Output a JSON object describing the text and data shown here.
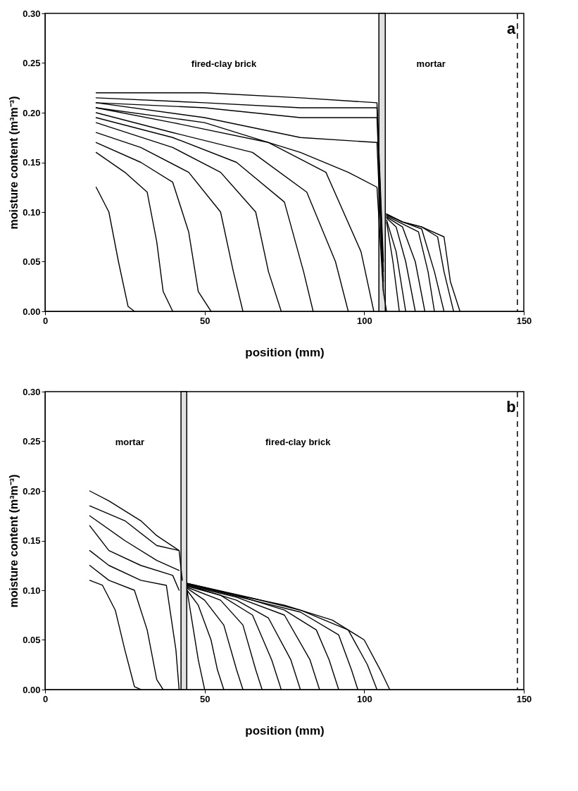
{
  "chart_data": [
    {
      "type": "line",
      "xlabel": "position (mm)",
      "ylabel": "moisture content (m³m⁻³)",
      "xlim": [
        0,
        150
      ],
      "ylim": [
        0,
        0.3
      ],
      "xticks": [
        0,
        50,
        100,
        150
      ],
      "yticks": [
        {
          "value": 0,
          "label": "0.00"
        },
        {
          "value": 0.05,
          "label": "0.05"
        },
        {
          "value": 0.1,
          "label": "0.10"
        },
        {
          "value": 0.15,
          "label": "0.15"
        },
        {
          "value": 0.2,
          "label": "0.20"
        },
        {
          "value": 0.25,
          "label": "0.25"
        },
        {
          "value": 0.3,
          "label": "0.30"
        }
      ],
      "grid": false,
      "legend": false,
      "marker": "none",
      "line_style": "solid",
      "bands": [
        {
          "axis": "x",
          "from": 104.6,
          "to": 106.6,
          "color": "#e0e0e0"
        }
      ],
      "ref_lines": [
        {
          "axis": "x",
          "value": 148,
          "line_style": "dashed"
        }
      ],
      "annotations": [
        "fired-clay brick",
        "mortar",
        "a"
      ],
      "series": [
        {
          "color": "#000000",
          "x": [
            16,
            20,
            23,
            26,
            28
          ],
          "values": [
            0.125,
            0.1,
            0.05,
            0.005,
            0
          ]
        },
        {
          "color": "#000000",
          "x": [
            16,
            25,
            32,
            35,
            37,
            40
          ],
          "values": [
            0.16,
            0.14,
            0.12,
            0.07,
            0.02,
            0
          ]
        },
        {
          "color": "#000000",
          "x": [
            16,
            30,
            40,
            45,
            48,
            52
          ],
          "values": [
            0.17,
            0.15,
            0.13,
            0.08,
            0.02,
            0
          ]
        },
        {
          "color": "#000000",
          "x": [
            16,
            30,
            45,
            55,
            59,
            62
          ],
          "values": [
            0.18,
            0.165,
            0.14,
            0.1,
            0.04,
            0
          ]
        },
        {
          "color": "#000000",
          "x": [
            16,
            40,
            55,
            66,
            70,
            74
          ],
          "values": [
            0.19,
            0.165,
            0.14,
            0.1,
            0.04,
            0
          ]
        },
        {
          "color": "#000000",
          "x": [
            16,
            40,
            60,
            75,
            81,
            84
          ],
          "values": [
            0.195,
            0.175,
            0.15,
            0.11,
            0.04,
            0
          ]
        },
        {
          "color": "#000000",
          "x": [
            16,
            40,
            65,
            82,
            91,
            95
          ],
          "values": [
            0.2,
            0.18,
            0.16,
            0.12,
            0.05,
            0
          ]
        },
        {
          "color": "#000000",
          "x": [
            16,
            40,
            70,
            88,
            99,
            103
          ],
          "values": [
            0.205,
            0.19,
            0.17,
            0.14,
            0.06,
            0
          ]
        },
        {
          "color": "#000000",
          "x": [
            16,
            50,
            80,
            95,
            104,
            106,
            107
          ],
          "values": [
            0.205,
            0.19,
            0.16,
            0.14,
            0.125,
            0.02,
            0
          ]
        },
        {
          "color": "#000000",
          "x": [
            16,
            50,
            80,
            104,
            106
          ],
          "values": [
            0.21,
            0.195,
            0.175,
            0.17,
            0.02
          ]
        },
        {
          "color": "#000000",
          "x": [
            16,
            50,
            80,
            104,
            106
          ],
          "values": [
            0.21,
            0.205,
            0.195,
            0.195,
            0.03
          ]
        },
        {
          "color": "#000000",
          "x": [
            16,
            50,
            80,
            104,
            106
          ],
          "values": [
            0.215,
            0.21,
            0.205,
            0.205,
            0.04
          ]
        },
        {
          "color": "#000000",
          "x": [
            16,
            30,
            50,
            80,
            104,
            106
          ],
          "values": [
            0.22,
            0.22,
            0.22,
            0.215,
            0.21,
            0.05
          ]
        },
        {
          "color": "#000000",
          "x": [
            107,
            109,
            111
          ],
          "values": [
            0.09,
            0.05,
            0
          ]
        },
        {
          "color": "#000000",
          "x": [
            107,
            110,
            113
          ],
          "values": [
            0.092,
            0.06,
            0
          ]
        },
        {
          "color": "#000000",
          "x": [
            107,
            110,
            113,
            116
          ],
          "values": [
            0.094,
            0.085,
            0.05,
            0
          ]
        },
        {
          "color": "#000000",
          "x": [
            107,
            112,
            116,
            119
          ],
          "values": [
            0.095,
            0.085,
            0.05,
            0
          ]
        },
        {
          "color": "#000000",
          "x": [
            107,
            112,
            117,
            120,
            122
          ],
          "values": [
            0.096,
            0.088,
            0.08,
            0.04,
            0
          ]
        },
        {
          "color": "#000000",
          "x": [
            107,
            112,
            118,
            122,
            125
          ],
          "values": [
            0.097,
            0.09,
            0.083,
            0.04,
            0
          ]
        },
        {
          "color": "#000000",
          "x": [
            107,
            112,
            118,
            123,
            125,
            128
          ],
          "values": [
            0.098,
            0.09,
            0.085,
            0.075,
            0.04,
            0
          ]
        },
        {
          "color": "#000000",
          "x": [
            107,
            112,
            118,
            125,
            127,
            130
          ],
          "values": [
            0.098,
            0.09,
            0.085,
            0.075,
            0.03,
            0
          ]
        }
      ]
    },
    {
      "type": "line",
      "xlabel": "position (mm)",
      "ylabel": "moisture content (m³m⁻³)",
      "xlim": [
        0,
        150
      ],
      "ylim": [
        0,
        0.3
      ],
      "xticks": [
        0,
        50,
        100,
        150
      ],
      "yticks": [
        {
          "value": 0,
          "label": "0.00"
        },
        {
          "value": 0.05,
          "label": "0.05"
        },
        {
          "value": 0.1,
          "label": "0.10"
        },
        {
          "value": 0.15,
          "label": "0.15"
        },
        {
          "value": 0.2,
          "label": "0.20"
        },
        {
          "value": 0.25,
          "label": "0.25"
        },
        {
          "value": 0.3,
          "label": "0.30"
        }
      ],
      "grid": false,
      "legend": false,
      "marker": "none",
      "line_style": "solid",
      "bands": [
        {
          "axis": "x",
          "from": 42.6,
          "to": 44.4,
          "color": "#e0e0e0"
        }
      ],
      "ref_lines": [
        {
          "axis": "x",
          "value": 148,
          "line_style": "dashed"
        }
      ],
      "annotations": [
        "mortar",
        "fired-clay brick",
        "b"
      ],
      "series": [
        {
          "color": "#000000",
          "x": [
            14,
            18,
            22,
            25,
            28,
            30
          ],
          "values": [
            0.11,
            0.105,
            0.08,
            0.04,
            0.003,
            0
          ]
        },
        {
          "color": "#000000",
          "x": [
            14,
            20,
            28,
            32,
            35,
            37
          ],
          "values": [
            0.125,
            0.11,
            0.1,
            0.06,
            0.01,
            0
          ]
        },
        {
          "color": "#000000",
          "x": [
            14,
            20,
            30,
            38,
            41,
            42
          ],
          "values": [
            0.14,
            0.125,
            0.11,
            0.105,
            0.04,
            0
          ]
        },
        {
          "color": "#000000",
          "x": [
            14,
            20,
            30,
            40,
            42
          ],
          "values": [
            0.165,
            0.14,
            0.125,
            0.115,
            0.1
          ]
        },
        {
          "color": "#000000",
          "x": [
            14,
            25,
            35,
            42
          ],
          "values": [
            0.175,
            0.15,
            0.13,
            0.12
          ]
        },
        {
          "color": "#000000",
          "x": [
            14,
            25,
            35,
            42
          ],
          "values": [
            0.185,
            0.17,
            0.145,
            0.14
          ]
        },
        {
          "color": "#000000",
          "x": [
            14,
            20,
            30,
            35,
            42,
            43
          ],
          "values": [
            0.2,
            0.19,
            0.17,
            0.155,
            0.14,
            0.11
          ]
        },
        {
          "color": "#000000",
          "x": [
            44.5,
            46,
            48,
            50
          ],
          "values": [
            0.1,
            0.07,
            0.03,
            0
          ]
        },
        {
          "color": "#000000",
          "x": [
            44.5,
            48,
            52,
            54,
            56
          ],
          "values": [
            0.1,
            0.085,
            0.05,
            0.02,
            0
          ]
        },
        {
          "color": "#000000",
          "x": [
            44.5,
            50,
            56,
            60,
            62
          ],
          "values": [
            0.102,
            0.09,
            0.065,
            0.02,
            0
          ]
        },
        {
          "color": "#000000",
          "x": [
            44.5,
            55,
            62,
            66,
            68
          ],
          "values": [
            0.103,
            0.09,
            0.065,
            0.02,
            0
          ]
        },
        {
          "color": "#000000",
          "x": [
            44.5,
            55,
            65,
            71,
            74
          ],
          "values": [
            0.104,
            0.095,
            0.075,
            0.03,
            0
          ]
        },
        {
          "color": "#000000",
          "x": [
            44.5,
            60,
            70,
            77,
            80
          ],
          "values": [
            0.105,
            0.09,
            0.072,
            0.03,
            0
          ]
        },
        {
          "color": "#000000",
          "x": [
            44.5,
            60,
            75,
            83,
            86
          ],
          "values": [
            0.105,
            0.093,
            0.075,
            0.03,
            0
          ]
        },
        {
          "color": "#000000",
          "x": [
            44.5,
            60,
            75,
            85,
            89,
            92
          ],
          "values": [
            0.106,
            0.095,
            0.08,
            0.06,
            0.03,
            0
          ]
        },
        {
          "color": "#000000",
          "x": [
            44.5,
            65,
            80,
            92,
            96,
            98
          ],
          "values": [
            0.106,
            0.09,
            0.078,
            0.055,
            0.02,
            0
          ]
        },
        {
          "color": "#000000",
          "x": [
            44.5,
            65,
            80,
            95,
            101,
            104
          ],
          "values": [
            0.107,
            0.092,
            0.08,
            0.06,
            0.025,
            0
          ]
        },
        {
          "color": "#000000",
          "x": [
            44.5,
            60,
            75,
            90,
            100,
            105,
            108
          ],
          "values": [
            0.107,
            0.095,
            0.085,
            0.07,
            0.05,
            0.02,
            0
          ]
        }
      ]
    }
  ]
}
